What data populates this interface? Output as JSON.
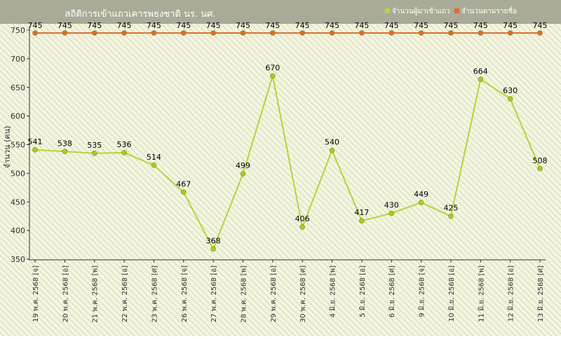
{
  "colors": {
    "header_bg": "#a9ab98",
    "plot_bg": "#f3f5e0",
    "hatch": "#d4d8b6",
    "series_attend": "#b6d43a",
    "series_attend_marker": "#a8cc20",
    "series_roster": "#e06a2c",
    "axis": "#303030",
    "title_text": "#ffffff"
  },
  "chart_data": {
    "type": "line",
    "title": "สถิติการเข้าแถวเคารพธงชาติ นร. นศ.",
    "ylabel": "จำนวน (คน)",
    "xlabel": "",
    "ylim": [
      350,
      750
    ],
    "yticks": [
      350,
      400,
      450,
      500,
      550,
      600,
      650,
      700,
      750
    ],
    "grid": false,
    "legend_position": "top-right",
    "categories": [
      "19 พ.ค. 2568 [จ]",
      "20 พ.ค. 2568 [อ]",
      "21 พ.ค. 2568 [พ]",
      "22 พ.ค. 2568 [อ]",
      "23 พ.ค. 2568 [ศ]",
      "26 พ.ค. 2568 [จ]",
      "27 พ.ค. 2568 [อ]",
      "28 พ.ค. 2568 [พ]",
      "29 พ.ค. 2568 [อ]",
      "30 พ.ค. 2568 [ศ]",
      "4 มิ.ย. 2568 [พ]",
      "5 มิ.ย. 2568 [อ]",
      "6 มิ.ย. 2568 [ศ]",
      "9 มิ.ย. 2568 [จ]",
      "10 มิ.ย. 2568 [อ]",
      "11 มิ.ย. 2568 [พ]",
      "12 มิ.ย. 2568 [อ]",
      "13 มิ.ย. 2568 [ศ]"
    ],
    "series": [
      {
        "name": "จำนวนผู้มาเข้าแถว",
        "color": "#b6d43a",
        "values": [
          541,
          538,
          535,
          536,
          514,
          467,
          368,
          499,
          670,
          406,
          540,
          417,
          430,
          449,
          425,
          664,
          630,
          508
        ]
      },
      {
        "name": "จำนวนตามรายชื่อ",
        "color": "#e06a2c",
        "values": [
          745,
          745,
          745,
          745,
          745,
          745,
          745,
          745,
          745,
          745,
          745,
          745,
          745,
          745,
          745,
          745,
          745,
          745
        ]
      }
    ]
  }
}
